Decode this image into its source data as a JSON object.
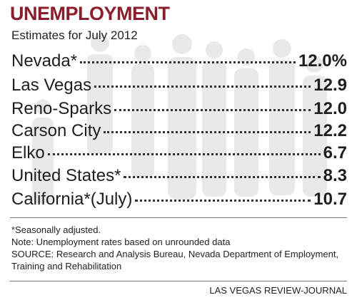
{
  "title": "UNEMPLOYMENT",
  "subtitle": "Estimates for July 2012",
  "rows": [
    {
      "label": "Nevada*",
      "value": "12.0%"
    },
    {
      "label": "Las Vegas",
      "value": "12.9"
    },
    {
      "label": "Reno-Sparks",
      "value": "12.0"
    },
    {
      "label": "Carson City",
      "value": "12.2"
    },
    {
      "label": "Elko",
      "value": "6.7"
    },
    {
      "label": "United States*",
      "value": "8.3"
    },
    {
      "label": "California*(July)",
      "value": "10.7"
    }
  ],
  "notes": [
    "*Seasonally adjusted.",
    "Note: Unemployment rates based on unrounded data",
    "SOURCE: Research and Analysis Bureau, Nevada Department of Employment, Training and Rehabilitation"
  ],
  "credit": "LAS VEGAS REVIEW-JOURNAL"
}
